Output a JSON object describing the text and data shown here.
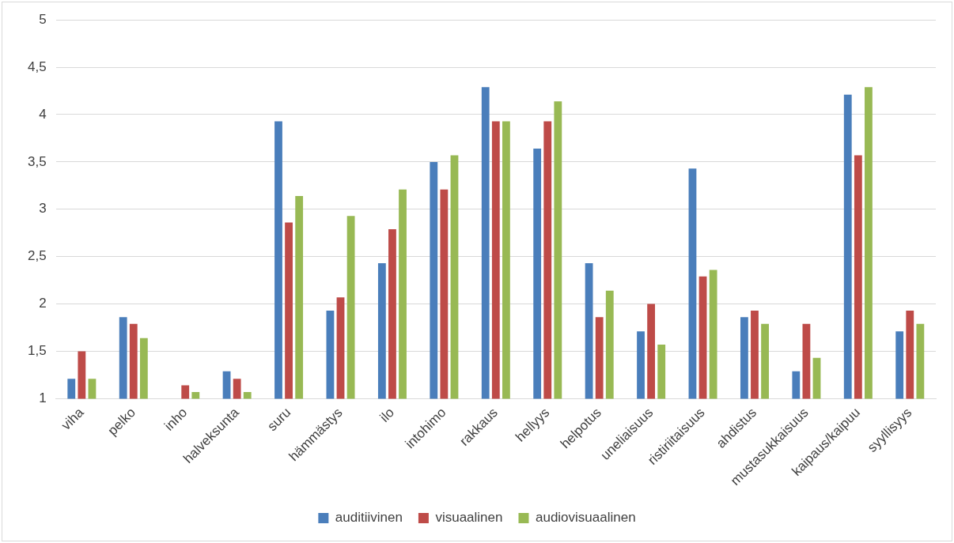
{
  "chart_data": {
    "type": "bar",
    "categories": [
      "viha",
      "pelko",
      "inho",
      "halveksunta",
      "suru",
      "hämmästys",
      "ilo",
      "intohimo",
      "rakkaus",
      "hellyys",
      "helpotus",
      "uneliaisuus",
      "ristiriitaisuus",
      "ahdistus",
      "mustasukkaisuus",
      "kaipaus/kaipuu",
      "syyllisyys"
    ],
    "series": [
      {
        "name": "auditiivinen",
        "color": "#4a7ebb",
        "values": [
          1.21,
          1.86,
          null,
          1.29,
          3.93,
          1.93,
          2.43,
          3.5,
          4.29,
          3.64,
          2.43,
          1.71,
          3.43,
          1.86,
          1.29,
          4.21,
          1.71
        ]
      },
      {
        "name": "visuaalinen",
        "color": "#be4b48",
        "values": [
          1.5,
          1.79,
          1.14,
          1.21,
          2.86,
          2.07,
          2.79,
          3.21,
          3.93,
          3.93,
          1.86,
          2,
          2.29,
          1.93,
          1.79,
          3.57,
          1.93
        ]
      },
      {
        "name": "audiovisuaalinen",
        "color": "#98b954",
        "values": [
          1.21,
          1.64,
          1.07,
          1.07,
          3.14,
          2.93,
          3.21,
          3.57,
          3.93,
          4.14,
          2.14,
          1.57,
          2.36,
          1.79,
          1.43,
          4.29,
          1.79
        ]
      }
    ],
    "ylim": [
      1,
      5
    ],
    "yticks": [
      1,
      {
        "value": 1.5,
        "label": "1,5"
      },
      2,
      {
        "value": 2.5,
        "label": "2,5"
      },
      3,
      {
        "value": 3.5,
        "label": "3,5"
      },
      4,
      {
        "value": 4.5,
        "label": "4,5"
      },
      5
    ],
    "grid": "y",
    "legend": "bottom"
  }
}
